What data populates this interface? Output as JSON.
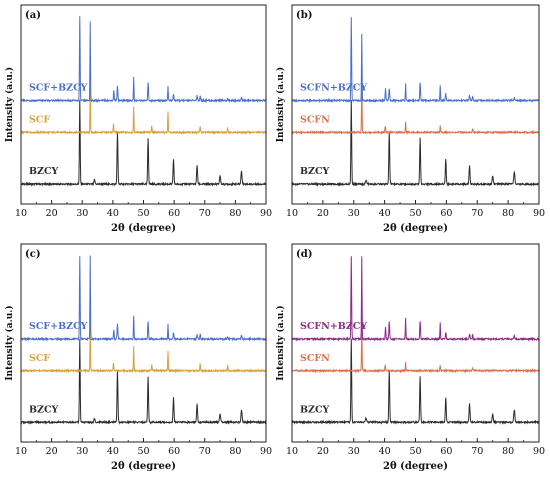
{
  "chart_data": [
    {
      "type": "line",
      "panel_label": "(a)",
      "xlabel": "2θ (degree)",
      "ylabel": "Intensity (a.u.)",
      "xlim": [
        10,
        90
      ],
      "xticks": [
        "10",
        "20",
        "30",
        "40",
        "50",
        "60",
        "70",
        "80",
        "90"
      ],
      "grid": false,
      "series": [
        {
          "name": "BZCY",
          "color": "#2b2b2b",
          "offset": 0.1,
          "peaks": [
            [
              29.2,
              1.0,
              0.35
            ],
            [
              41.5,
              0.62,
              0.4
            ],
            [
              51.5,
              0.55,
              0.4
            ],
            [
              59.8,
              0.3,
              0.4
            ],
            [
              67.5,
              0.22,
              0.45
            ],
            [
              75.0,
              0.1,
              0.5
            ],
            [
              82.0,
              0.15,
              0.5
            ],
            [
              34.0,
              0.05,
              0.5
            ]
          ]
        },
        {
          "name": "SCF",
          "color": "#d9a036",
          "offset": 0.36,
          "peaks": [
            [
              32.6,
              0.55,
              0.25
            ],
            [
              40.2,
              0.1,
              0.3
            ],
            [
              46.8,
              0.3,
              0.25
            ],
            [
              52.7,
              0.08,
              0.3
            ],
            [
              58.0,
              0.25,
              0.25
            ],
            [
              68.5,
              0.08,
              0.3
            ],
            [
              77.5,
              0.06,
              0.3
            ]
          ]
        },
        {
          "name": "SCF+BZCY",
          "color": "#4a6fc6",
          "offset": 0.52,
          "peaks": [
            [
              29.2,
              1.0,
              0.3
            ],
            [
              32.6,
              0.95,
              0.25
            ],
            [
              40.3,
              0.12,
              0.3
            ],
            [
              41.5,
              0.18,
              0.35
            ],
            [
              46.8,
              0.28,
              0.25
            ],
            [
              51.5,
              0.22,
              0.35
            ],
            [
              58.0,
              0.18,
              0.25
            ],
            [
              59.8,
              0.08,
              0.35
            ],
            [
              67.5,
              0.06,
              0.4
            ],
            [
              68.5,
              0.06,
              0.3
            ],
            [
              77.5,
              0.03,
              0.3
            ],
            [
              82.0,
              0.04,
              0.4
            ]
          ]
        }
      ]
    },
    {
      "type": "line",
      "panel_label": "(b)",
      "xlabel": "2θ (degree)",
      "ylabel": "Intensity (a.u.)",
      "xlim": [
        10,
        90
      ],
      "xticks": [
        "10",
        "20",
        "30",
        "40",
        "50",
        "60",
        "70",
        "80",
        "90"
      ],
      "grid": false,
      "series": [
        {
          "name": "BZCY",
          "color": "#2b2b2b",
          "offset": 0.1,
          "peaks": [
            [
              29.2,
              1.0,
              0.35
            ],
            [
              41.5,
              0.62,
              0.4
            ],
            [
              51.5,
              0.55,
              0.4
            ],
            [
              59.8,
              0.3,
              0.4
            ],
            [
              67.5,
              0.22,
              0.45
            ],
            [
              75.0,
              0.1,
              0.5
            ],
            [
              82.0,
              0.15,
              0.5
            ],
            [
              34.0,
              0.05,
              0.5
            ]
          ]
        },
        {
          "name": "SCFN",
          "color": "#d9704a",
          "offset": 0.36,
          "peaks": [
            [
              32.6,
              0.6,
              0.25
            ],
            [
              40.2,
              0.08,
              0.3
            ],
            [
              46.8,
              0.12,
              0.25
            ],
            [
              58.0,
              0.08,
              0.25
            ],
            [
              68.5,
              0.04,
              0.3
            ]
          ]
        },
        {
          "name": "SCFN+BZCY",
          "color": "#4a6fc6",
          "offset": 0.52,
          "peaks": [
            [
              29.2,
              1.0,
              0.3
            ],
            [
              32.6,
              0.8,
              0.25
            ],
            [
              40.3,
              0.15,
              0.3
            ],
            [
              41.5,
              0.15,
              0.35
            ],
            [
              46.8,
              0.2,
              0.25
            ],
            [
              51.5,
              0.22,
              0.35
            ],
            [
              58.0,
              0.18,
              0.25
            ],
            [
              59.8,
              0.08,
              0.35
            ],
            [
              67.5,
              0.06,
              0.4
            ],
            [
              68.5,
              0.05,
              0.3
            ],
            [
              82.0,
              0.04,
              0.4
            ]
          ]
        }
      ]
    },
    {
      "type": "line",
      "panel_label": "(c)",
      "xlabel": "2θ (degree)",
      "ylabel": "Intensity (a.u.)",
      "xlim": [
        10,
        90
      ],
      "xticks": [
        "10",
        "20",
        "30",
        "40",
        "50",
        "60",
        "70",
        "80",
        "90"
      ],
      "grid": false,
      "series": [
        {
          "name": "BZCY",
          "color": "#2b2b2b",
          "offset": 0.1,
          "peaks": [
            [
              29.2,
              1.0,
              0.35
            ],
            [
              41.5,
              0.62,
              0.4
            ],
            [
              51.5,
              0.55,
              0.4
            ],
            [
              59.8,
              0.3,
              0.4
            ],
            [
              67.5,
              0.22,
              0.45
            ],
            [
              75.0,
              0.1,
              0.5
            ],
            [
              82.0,
              0.15,
              0.5
            ],
            [
              34.0,
              0.05,
              0.5
            ]
          ]
        },
        {
          "name": "SCF",
          "color": "#d9a036",
          "offset": 0.36,
          "peaks": [
            [
              32.6,
              0.55,
              0.25
            ],
            [
              40.2,
              0.1,
              0.3
            ],
            [
              46.8,
              0.3,
              0.25
            ],
            [
              52.7,
              0.08,
              0.3
            ],
            [
              58.0,
              0.25,
              0.25
            ],
            [
              68.5,
              0.08,
              0.3
            ],
            [
              77.5,
              0.06,
              0.3
            ]
          ]
        },
        {
          "name": "SCF+BZCY",
          "color": "#4a6fc6",
          "offset": 0.52,
          "peaks": [
            [
              29.2,
              1.0,
              0.3
            ],
            [
              32.6,
              1.0,
              0.25
            ],
            [
              40.3,
              0.12,
              0.3
            ],
            [
              41.5,
              0.18,
              0.35
            ],
            [
              46.8,
              0.28,
              0.25
            ],
            [
              51.5,
              0.22,
              0.35
            ],
            [
              58.0,
              0.18,
              0.25
            ],
            [
              59.8,
              0.08,
              0.35
            ],
            [
              67.5,
              0.06,
              0.4
            ],
            [
              68.5,
              0.06,
              0.3
            ],
            [
              77.5,
              0.03,
              0.3
            ],
            [
              82.0,
              0.04,
              0.4
            ]
          ]
        }
      ]
    },
    {
      "type": "line",
      "panel_label": "(d)",
      "xlabel": "2θ (degree)",
      "ylabel": "Intensity (a.u.)",
      "xlim": [
        10,
        90
      ],
      "xticks": [
        "10",
        "20",
        "30",
        "40",
        "50",
        "60",
        "70",
        "80",
        "90"
      ],
      "grid": false,
      "series": [
        {
          "name": "BZCY",
          "color": "#2b2b2b",
          "offset": 0.1,
          "peaks": [
            [
              29.2,
              1.0,
              0.35
            ],
            [
              41.5,
              0.62,
              0.4
            ],
            [
              51.5,
              0.55,
              0.4
            ],
            [
              59.8,
              0.3,
              0.4
            ],
            [
              67.5,
              0.22,
              0.45
            ],
            [
              75.0,
              0.1,
              0.5
            ],
            [
              82.0,
              0.15,
              0.5
            ],
            [
              34.0,
              0.05,
              0.5
            ]
          ]
        },
        {
          "name": "SCFN",
          "color": "#d9704a",
          "offset": 0.36,
          "peaks": [
            [
              32.6,
              0.55,
              0.25
            ],
            [
              40.2,
              0.08,
              0.3
            ],
            [
              46.8,
              0.1,
              0.25
            ],
            [
              58.0,
              0.07,
              0.25
            ],
            [
              68.5,
              0.04,
              0.3
            ]
          ]
        },
        {
          "name": "SCFN+BZCY",
          "color": "#8a2a8a",
          "offset": 0.52,
          "peaks": [
            [
              29.2,
              1.0,
              0.3
            ],
            [
              32.6,
              1.0,
              0.25
            ],
            [
              40.3,
              0.15,
              0.3
            ],
            [
              41.5,
              0.22,
              0.35
            ],
            [
              46.8,
              0.25,
              0.25
            ],
            [
              51.5,
              0.22,
              0.35
            ],
            [
              58.0,
              0.2,
              0.25
            ],
            [
              59.8,
              0.08,
              0.35
            ],
            [
              67.5,
              0.06,
              0.4
            ],
            [
              68.5,
              0.05,
              0.3
            ],
            [
              82.0,
              0.04,
              0.4
            ]
          ]
        }
      ]
    }
  ]
}
